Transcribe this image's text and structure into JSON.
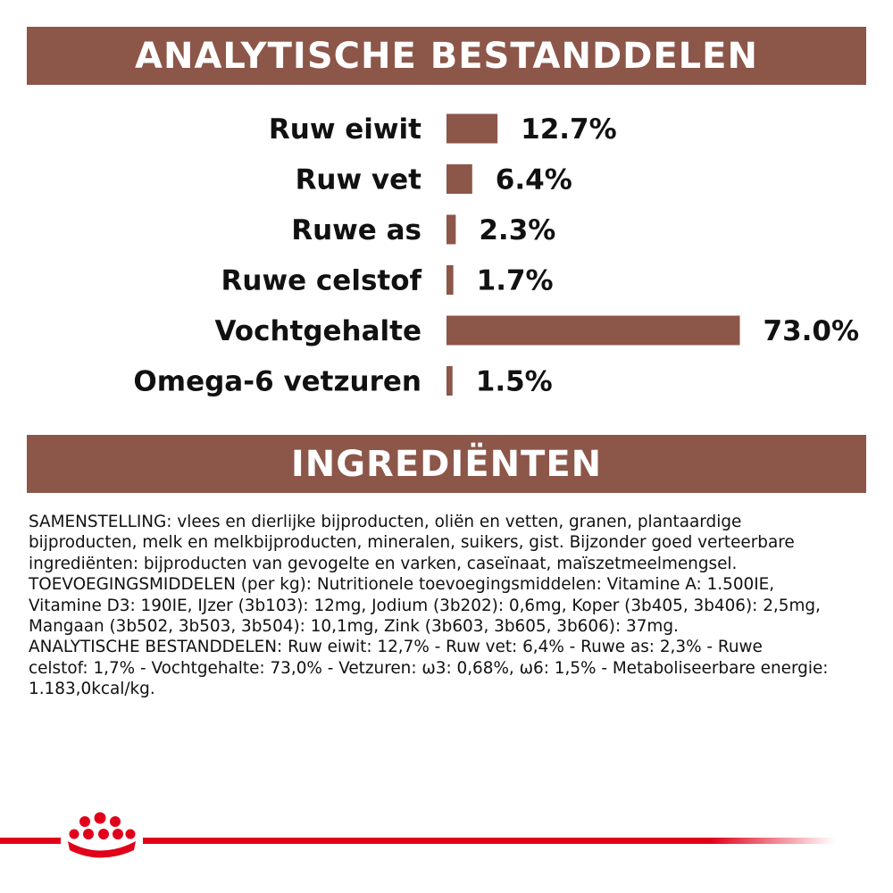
{
  "header": {
    "analytic_title": "ANALYTISCHE BESTANDDELEN",
    "ingredients_title": "INGREDIËNTEN"
  },
  "chart_data": {
    "type": "bar",
    "orientation": "horizontal",
    "categories": [
      "Ruw eiwit",
      "Ruw vet",
      "Ruwe as",
      "Ruwe celstof",
      "Vochtgehalte",
      "Omega-6 vetzuren"
    ],
    "values": [
      12.7,
      6.4,
      2.3,
      1.7,
      73.0,
      1.5
    ],
    "value_labels": [
      "12.7%",
      "6.4%",
      "2.3%",
      "1.7%",
      "73.0%",
      "1.5%"
    ],
    "unit": "%",
    "bar_color": "#8c5649",
    "grid": false,
    "legend": "none"
  },
  "ingredients": {
    "lines": [
      "SAMENSTELLING: vlees en dierlijke bijproducten, oliën en vetten, granen, plantaardige",
      "bijproducten, melk en melkbijproducten, mineralen, suikers, gist. Bijzonder goed verteerbare",
      "ingrediënten: bijproducten van gevogelte en varken, caseïnaat, maïszetmeelmengsel.",
      "TOEVOEGINGSMIDDELEN (per kg): Nutritionele toevoegingsmiddelen: Vitamine A: 1.500IE,",
      "Vitamine D3: 190IE, IJzer (3b103): 12mg, Jodium (3b202): 0,6mg, Koper (3b405, 3b406): 2,5mg,",
      "Mangaan (3b502, 3b503, 3b504): 10,1mg, Zink (3b603, 3b605, 3b606): 37mg.",
      "ANALYTISCHE BESTANDDELEN: Ruw eiwit: 12,7% - Ruw vet: 6,4% - Ruwe as: 2,3% - Ruwe",
      "celstof: 1,7% - Vochtgehalte: 73,0% - Vetzuren: ω3: 0,68%, ω6: 1,5% - Metaboliseerbare energie:",
      "1.183,0kcal/kg."
    ]
  },
  "footer": {
    "logo_icon": "crown-icon",
    "stripe_color": "#e1001a"
  }
}
